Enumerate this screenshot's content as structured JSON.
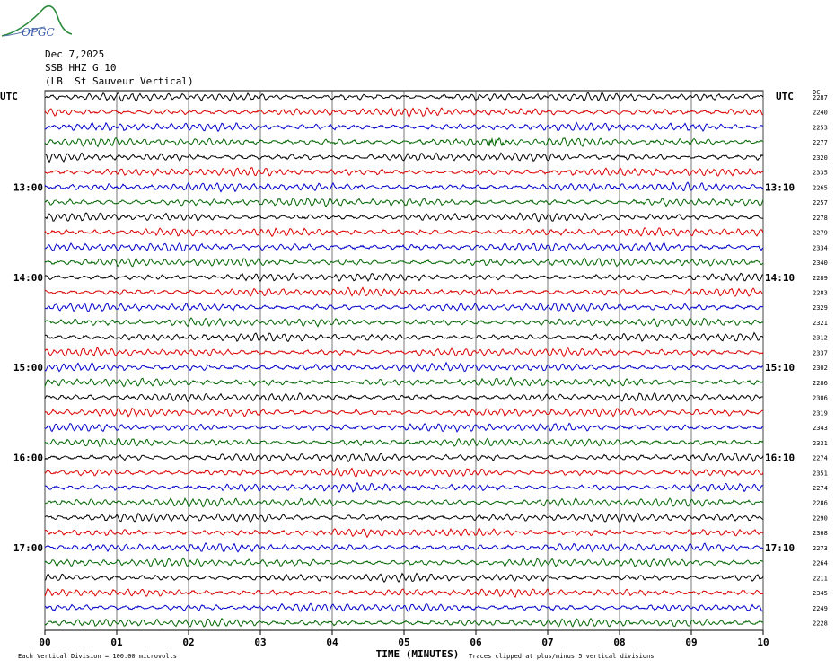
{
  "header": {
    "logo_text": "OPGC",
    "date": "Dec 7,2025",
    "station": "SSB HHZ G 10",
    "location": "(LB  St Sauveur Vertical)",
    "utc_left": "UTC",
    "utc_right": "UTC",
    "dc_label": "DC"
  },
  "chart_data": {
    "type": "line",
    "title": "",
    "xlabel": "TIME (MINUTES)",
    "ylabel": "",
    "x_ticks": [
      "00",
      "01",
      "02",
      "03",
      "04",
      "05",
      "06",
      "07",
      "08",
      "09",
      "10"
    ],
    "xlim": [
      0,
      10
    ],
    "left_hour_labels": [
      {
        "row": 6,
        "label": "13:00"
      },
      {
        "row": 12,
        "label": "14:00"
      },
      {
        "row": 18,
        "label": "15:00"
      },
      {
        "row": 24,
        "label": "16:00"
      },
      {
        "row": 30,
        "label": "17:00"
      }
    ],
    "right_hour_labels": [
      {
        "row": 6,
        "label": "13:10"
      },
      {
        "row": 12,
        "label": "14:10"
      },
      {
        "row": 18,
        "label": "15:10"
      },
      {
        "row": 24,
        "label": "16:10"
      },
      {
        "row": 30,
        "label": "17:10"
      }
    ],
    "trace_colors": [
      "#000000",
      "#dd0000",
      "#0000cc",
      "#006600"
    ],
    "dc_offsets": [
      2287,
      2240,
      2253,
      2277,
      2320,
      2335,
      2265,
      2257,
      2278,
      2279,
      2334,
      2340,
      2289,
      2283,
      2329,
      2321,
      2312,
      2337,
      2302,
      2286,
      2306,
      2319,
      2343,
      2331,
      2274,
      2351,
      2274,
      2286,
      2290,
      2368,
      2273,
      2264,
      2211,
      2345,
      2249,
      2228
    ],
    "event": {
      "row": 3,
      "minute": 6.3
    },
    "footer_left": "Each Vertical Division =  100.00 microvolts",
    "footer_right": "Traces clipped at plus/minus 5 vertical divisions"
  }
}
